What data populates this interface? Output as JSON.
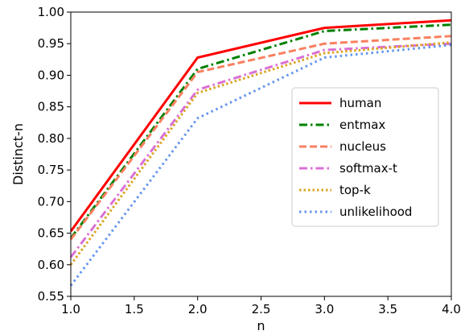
{
  "chart_data": {
    "type": "line",
    "xlabel": "n",
    "ylabel": "Distinct-n",
    "xlim": [
      1.0,
      4.0
    ],
    "ylim": [
      0.55,
      1.0
    ],
    "xticks": [
      "1.0",
      "1.5",
      "2.0",
      "2.5",
      "3.0",
      "3.5",
      "4.0"
    ],
    "yticks": [
      "0.55",
      "0.60",
      "0.65",
      "0.70",
      "0.75",
      "0.80",
      "0.85",
      "0.90",
      "0.95",
      "1.00"
    ],
    "x": [
      1,
      2,
      3,
      4
    ],
    "grid": false,
    "legend_position": "center-right",
    "series": [
      {
        "name": "human",
        "values": [
          0.653,
          0.928,
          0.975,
          0.987
        ],
        "color": "#ff0000",
        "style": "solid"
      },
      {
        "name": "entmax",
        "values": [
          0.642,
          0.91,
          0.97,
          0.98
        ],
        "color": "#008000",
        "style": "dashdot"
      },
      {
        "name": "nucleus",
        "values": [
          0.64,
          0.905,
          0.95,
          0.962
        ],
        "color": "#fa8060",
        "style": "dashed"
      },
      {
        "name": "softmax-t",
        "values": [
          0.612,
          0.877,
          0.94,
          0.95
        ],
        "color": "#da70d6",
        "style": "dashdot"
      },
      {
        "name": "top-k",
        "values": [
          0.6,
          0.872,
          0.935,
          0.952
        ],
        "color": "#daa520",
        "style": "dotted"
      },
      {
        "name": "unlikelihood",
        "values": [
          0.567,
          0.832,
          0.928,
          0.948
        ],
        "color": "#6495ed",
        "style": "densedot"
      }
    ]
  }
}
